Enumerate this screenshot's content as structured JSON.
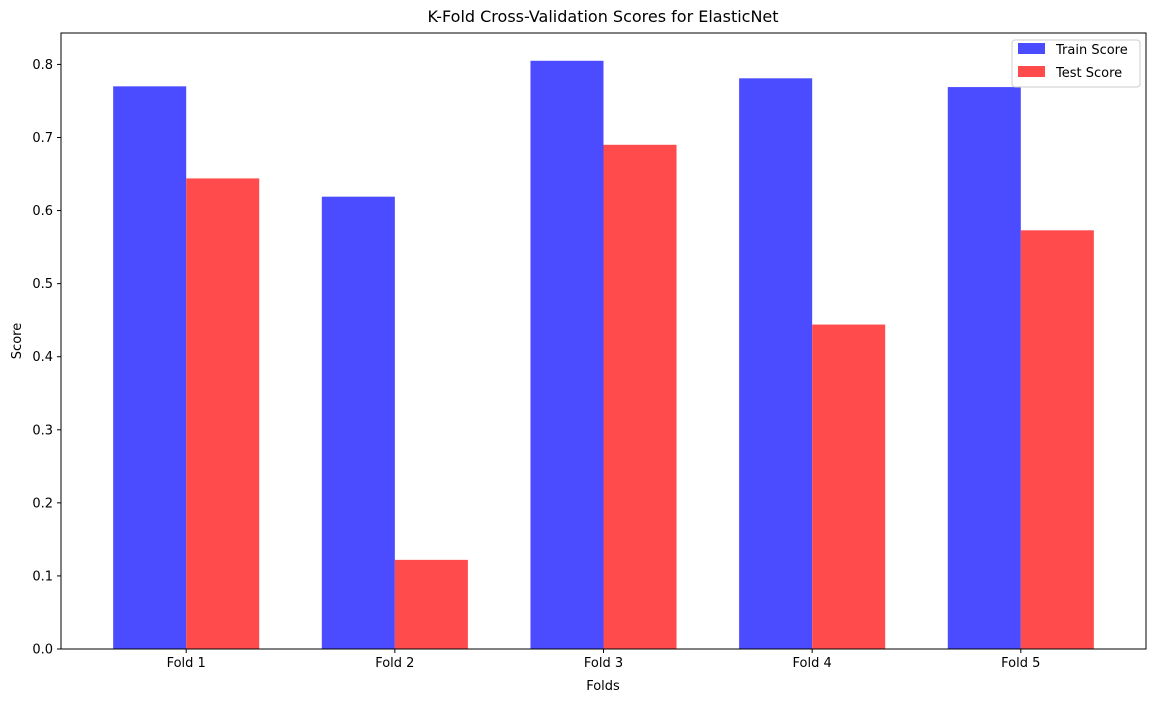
{
  "chart_data": {
    "type": "bar",
    "title": "K-Fold Cross-Validation Scores for ElasticNet",
    "xlabel": "Folds",
    "ylabel": "Score",
    "categories": [
      "Fold 1",
      "Fold 2",
      "Fold 3",
      "Fold 4",
      "Fold 5"
    ],
    "series": [
      {
        "name": "Train Score",
        "color": "#4b4bff",
        "values": [
          0.77,
          0.619,
          0.805,
          0.781,
          0.769
        ]
      },
      {
        "name": "Test Score",
        "color": "#ff4b4b",
        "values": [
          0.644,
          0.122,
          0.69,
          0.444,
          0.573
        ]
      }
    ],
    "ylim": [
      0,
      0.843
    ],
    "yticks": [
      0.0,
      0.1,
      0.2,
      0.3,
      0.4,
      0.5,
      0.6,
      0.7,
      0.8
    ],
    "ytick_labels": [
      "0.0",
      "0.1",
      "0.2",
      "0.3",
      "0.4",
      "0.5",
      "0.6",
      "0.7",
      "0.8"
    ],
    "grid": false,
    "legend_position": "top-right"
  }
}
